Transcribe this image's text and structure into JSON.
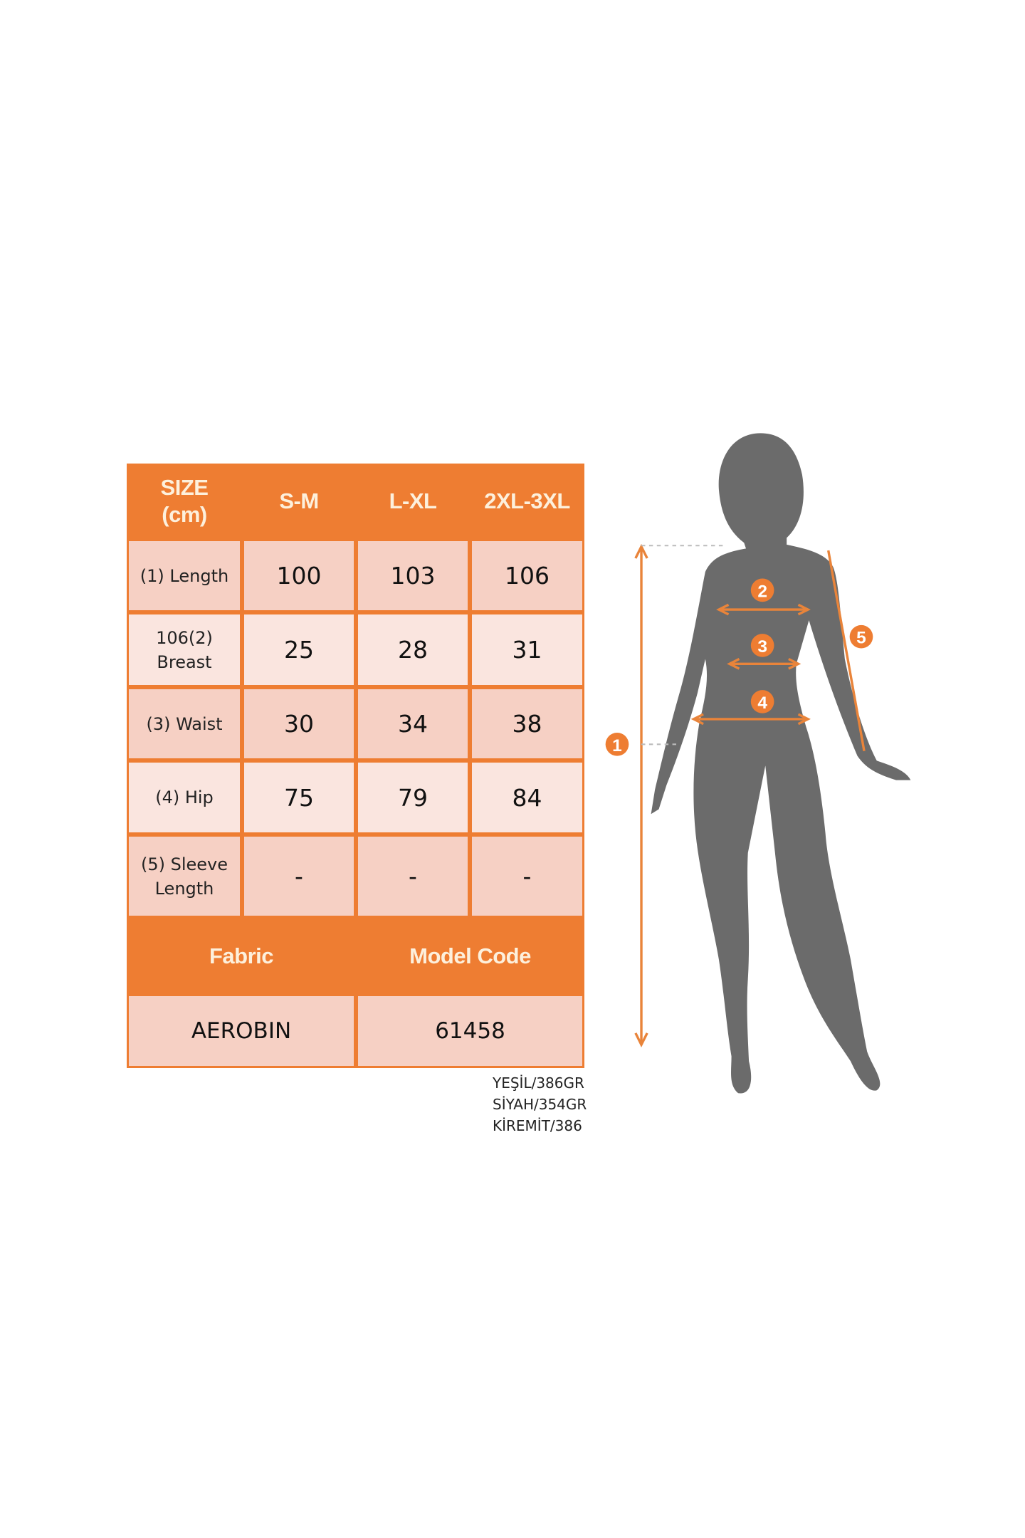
{
  "table": {
    "header": [
      "SIZE\n(cm)",
      "S-M",
      "L-XL",
      "2XL-3XL"
    ],
    "header_line1": "SIZE",
    "header_line2": "(cm)",
    "rows": [
      {
        "label1": "(1) Length",
        "label2": "",
        "values": [
          "100",
          "103",
          "106"
        ]
      },
      {
        "label1": "106(2)",
        "label2": "Breast",
        "values": [
          "25",
          "28",
          "31"
        ]
      },
      {
        "label1": "(3) Waist",
        "label2": "",
        "values": [
          "30",
          "34",
          "38"
        ]
      },
      {
        "label1": "(4) Hip",
        "label2": "",
        "values": [
          "75",
          "79",
          "84"
        ]
      },
      {
        "label1": "(5) Sleeve",
        "label2": "Length",
        "values": [
          "-",
          "-",
          "-"
        ]
      }
    ],
    "footer_headers": [
      "Fabric",
      "Model Code"
    ],
    "footer_values": [
      "AEROBIN",
      "61458"
    ]
  },
  "notes": [
    "YEŞİL/386GR",
    "SİYAH/354GR",
    "KİREMİT/386"
  ],
  "figure": {
    "markers": [
      "1",
      "2",
      "3",
      "4",
      "5"
    ]
  },
  "colors": {
    "accent": "#ee7d32",
    "cell": "#f6d0c4",
    "cell_light": "#fae5df",
    "silhouette": "#6b6b6b"
  }
}
